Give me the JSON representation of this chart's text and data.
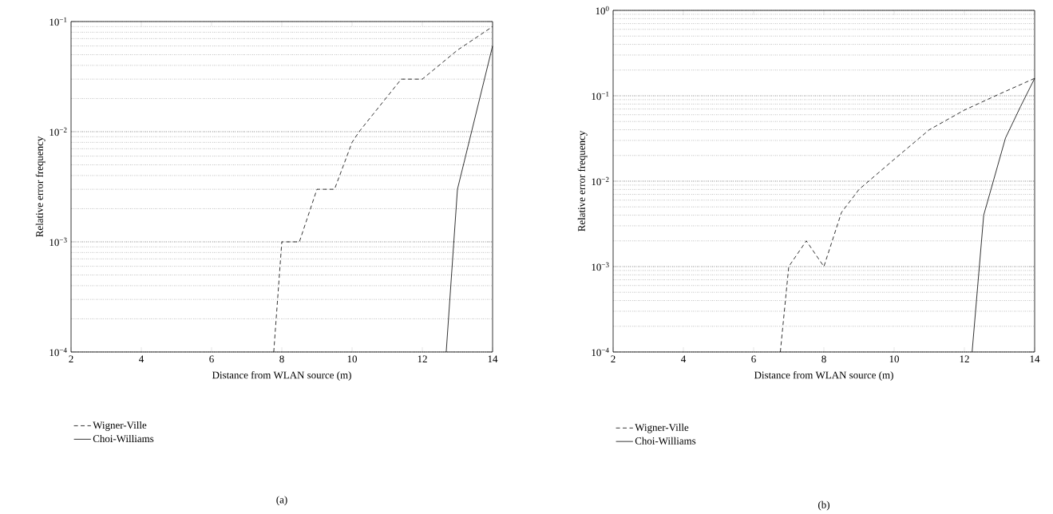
{
  "chart_data": [
    {
      "type": "line",
      "xlabel": "Distance from WLAN source (m)",
      "ylabel": "Relative error frequency",
      "annotations": [
        "(a)"
      ],
      "log": "y",
      "grid": "y",
      "legend": "bottom left",
      "marker": "none",
      "xlim": [
        2,
        14
      ],
      "xticks": [
        2,
        4,
        6,
        8,
        10,
        12,
        14
      ],
      "ylim": [
        0.0001,
        0.1
      ],
      "yticks": [
        {
          "value": 0.0001,
          "label": "10$^{−4}$"
        },
        {
          "value": 0.001,
          "label": "10$^{−3}$"
        },
        {
          "value": 0.01,
          "label": "10$^{−2}$"
        },
        {
          "value": 0.1,
          "label": "10$^{−1}$"
        }
      ],
      "series": [
        {
          "name": "Wigner-Ville",
          "color": "#000000",
          "line_style": "dashed",
          "x": [
            7.77,
            8,
            8.5,
            9,
            9.5,
            10,
            10.2,
            11.4,
            12,
            13,
            14
          ],
          "values": [
            0.0001,
            0.001,
            0.001,
            0.003,
            0.003,
            0.008,
            0.01,
            0.03,
            0.03,
            0.055,
            0.09
          ]
        },
        {
          "name": "Choi-Williams",
          "color": "#000000",
          "line_style": "solid",
          "x": [
            12.68,
            13,
            14
          ],
          "values": [
            0.0001,
            0.003,
            0.06
          ]
        }
      ]
    },
    {
      "type": "line",
      "xlabel": "Distance from WLAN source (m)",
      "ylabel": "Relative error frequency",
      "annotations": [
        "(b)"
      ],
      "log": "y",
      "grid": "y",
      "legend": "bottom left",
      "marker": "none",
      "xlim": [
        2,
        14
      ],
      "xticks": [
        2,
        4,
        6,
        8,
        10,
        12,
        14
      ],
      "ylim": [
        0.0001,
        1
      ],
      "yticks": [
        {
          "value": 0.0001,
          "label": "10$^{−4}$"
        },
        {
          "value": 0.001,
          "label": "10$^{−3}$"
        },
        {
          "value": 0.01,
          "label": "10$^{−2}$"
        },
        {
          "value": 0.1,
          "label": "10$^{−1}$"
        },
        {
          "value": 1,
          "label": "10$^{0}$"
        }
      ],
      "series": [
        {
          "name": "Wigner-Ville",
          "color": "#000000",
          "line_style": "dashed",
          "x": [
            6.76,
            7,
            7.5,
            8,
            8.5,
            9,
            10,
            11,
            12,
            13,
            14
          ],
          "values": [
            0.0001,
            0.001,
            0.002,
            0.001,
            0.0043,
            0.008,
            0.018,
            0.04,
            0.068,
            0.105,
            0.16
          ]
        },
        {
          "name": "Choi-Williams",
          "color": "#000000",
          "line_style": "solid",
          "x": [
            12.22,
            12.55,
            13.17,
            13.6,
            14
          ],
          "values": [
            0.0001,
            0.004,
            0.032,
            0.075,
            0.16
          ]
        }
      ]
    }
  ]
}
